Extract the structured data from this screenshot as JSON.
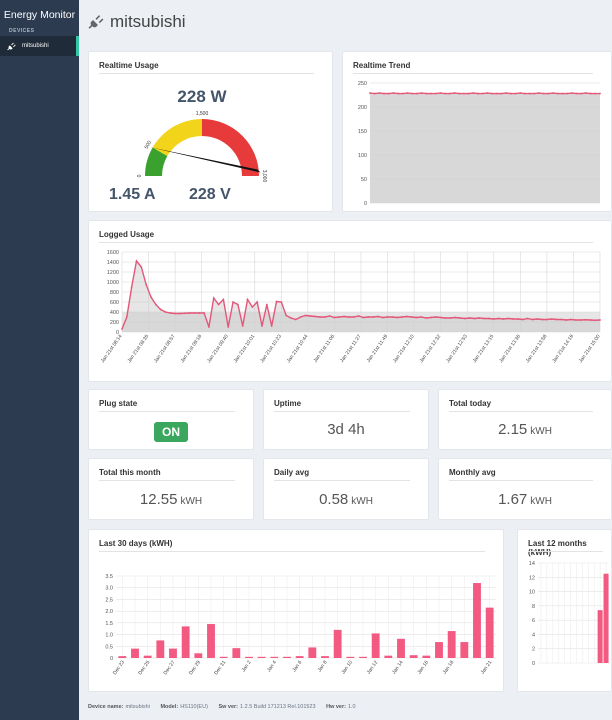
{
  "app": {
    "title": "Energy Monitor",
    "nav_header": "DEVICES",
    "nav_items": [
      {
        "label": "mitsubishi"
      }
    ]
  },
  "page": {
    "title": "mitsubishi"
  },
  "realtime_usage": {
    "title": "Realtime Usage",
    "power": "228 W",
    "current": "1.45 A",
    "voltage": "228 V",
    "gauge_ticks": [
      "0",
      "500",
      "1,500",
      "3,000"
    ],
    "gauge_value": 228,
    "gauge_max": 3000,
    "colors": {
      "green": "#3aa02e",
      "yellow": "#f2d51b",
      "red": "#e73b3b"
    }
  },
  "realtime_trend": {
    "title": "Realtime Trend",
    "chart_data": {
      "type": "line",
      "y_ticks": [
        "250",
        "200",
        "150",
        "100",
        "50",
        "0"
      ],
      "ylim": [
        0,
        250
      ],
      "values": [
        229,
        228,
        229,
        228,
        228,
        229,
        228,
        228,
        229,
        228,
        228,
        229,
        228,
        228,
        228,
        229,
        228,
        228,
        229,
        228,
        228,
        228,
        229,
        228,
        228,
        229,
        228,
        228,
        228,
        229,
        228,
        228,
        229,
        228,
        228,
        228,
        229,
        228,
        228,
        229,
        228,
        228,
        228,
        229,
        228,
        228,
        229,
        228,
        228,
        228
      ],
      "color": "#e4577a"
    }
  },
  "logged_usage": {
    "title": "Logged Usage",
    "chart_data": {
      "type": "line",
      "y_ticks": [
        "1600",
        "1400",
        "1200",
        "1000",
        "800",
        "600",
        "400",
        "200",
        "0"
      ],
      "ylim": [
        0,
        1600
      ],
      "x_labels": [
        "Jan 21st 08:14",
        "Jan 21st 08:35",
        "Jan 21st 08:57",
        "Jan 21st 09:18",
        "Jan 21st 09:40",
        "Jan 21st 10:01",
        "Jan 21st 10:23",
        "Jan 21st 10:44",
        "Jan 21st 11:06",
        "Jan 21st 11:27",
        "Jan 21st 11:49",
        "Jan 21st 12:10",
        "Jan 21st 12:32",
        "Jan 21st 12:53",
        "Jan 21st 13:15",
        "Jan 21st 13:36",
        "Jan 21st 13:58",
        "Jan 21st 14:19",
        "Jan 21st 15:00"
      ],
      "values": [
        60,
        300,
        900,
        1420,
        1300,
        950,
        700,
        550,
        450,
        400,
        380,
        370,
        370,
        375,
        380,
        380,
        380,
        380,
        100,
        680,
        550,
        650,
        100,
        600,
        550,
        120,
        650,
        500,
        600,
        120,
        550,
        120,
        610,
        600,
        330,
        280,
        250,
        300,
        330,
        320,
        310,
        300,
        300,
        320,
        290,
        300,
        310,
        300,
        300,
        320,
        290,
        300,
        300,
        310,
        290,
        300,
        300,
        290,
        300,
        310,
        300,
        290,
        300,
        280,
        290,
        300,
        290,
        280,
        280,
        290,
        280,
        270,
        280,
        270,
        280,
        270,
        270,
        260,
        270,
        260,
        270,
        260,
        260,
        250,
        270,
        250,
        260,
        250,
        250,
        260,
        250,
        250,
        240,
        250,
        240,
        240,
        245,
        240,
        235,
        240
      ],
      "color": "#e4577a"
    }
  },
  "plug_state": {
    "title": "Plug state",
    "value": "ON"
  },
  "uptime": {
    "title": "Uptime",
    "value": "3d 4h"
  },
  "total_today": {
    "title": "Total today",
    "value": "2.15",
    "unit": "kWH"
  },
  "total_month": {
    "title": "Total this month",
    "value": "12.55",
    "unit": "kWH"
  },
  "daily_avg": {
    "title": "Daily avg",
    "value": "0.58",
    "unit": "kWH"
  },
  "monthly_avg": {
    "title": "Monthly avg",
    "value": "1.67",
    "unit": "kWH"
  },
  "last_30_days": {
    "title": "Last 30 days (kWH)",
    "chart_data": {
      "type": "bar",
      "y_ticks": [
        "3.5",
        "3.0",
        "2.5",
        "2.0",
        "1.5",
        "1.0",
        "0.5",
        "0"
      ],
      "ylim": [
        0,
        3.5
      ],
      "x_labels": [
        "Dec 23",
        "Dec 25",
        "Dec 27",
        "Dec 29",
        "Dec 31",
        "Jan 2",
        "Jan 4",
        "Jan 6",
        "Jan 8",
        "Jan 10",
        "Jan 12",
        "Jan 14",
        "Jan 16",
        "Jan 18",
        "Jan 21"
      ],
      "values": [
        0.08,
        0.4,
        0.1,
        0.75,
        0.4,
        1.35,
        0.2,
        1.45,
        0.05,
        0.42,
        0.05,
        0.05,
        0.05,
        0.05,
        0.08,
        0.45,
        0.08,
        1.2,
        0.05,
        0.05,
        1.05,
        0.1,
        0.82,
        0.12,
        0.1,
        0.68,
        1.15,
        0.68,
        3.2,
        2.15
      ],
      "color": "#f25a82"
    }
  },
  "last_12_months": {
    "title": "Last 12 months (kWH)",
    "chart_data": {
      "type": "bar",
      "y_ticks": [
        "14",
        "12",
        "10",
        "8",
        "6",
        "4",
        "2",
        "0"
      ],
      "ylim": [
        0,
        14
      ],
      "x_labels": [
        "Feb",
        "Mar",
        "Apr",
        "May",
        "Jun",
        "Jul",
        "Aug",
        "Sep",
        "Oct",
        "Nov",
        "Dec",
        "Jan"
      ],
      "values": [
        0,
        0,
        0,
        0,
        0,
        0,
        0,
        0,
        0,
        0,
        7.4,
        12.5
      ],
      "color": "#f25a82"
    }
  },
  "footer": {
    "device_name_label": "Device name:",
    "device_name": "mitsubishi",
    "model_label": "Model:",
    "model": "HS110(EU)",
    "sw_label": "Sw ver:",
    "sw": "1.2.5 Build 171213 Rel.101523",
    "hw_label": "Hw ver:",
    "hw": "1.0"
  }
}
